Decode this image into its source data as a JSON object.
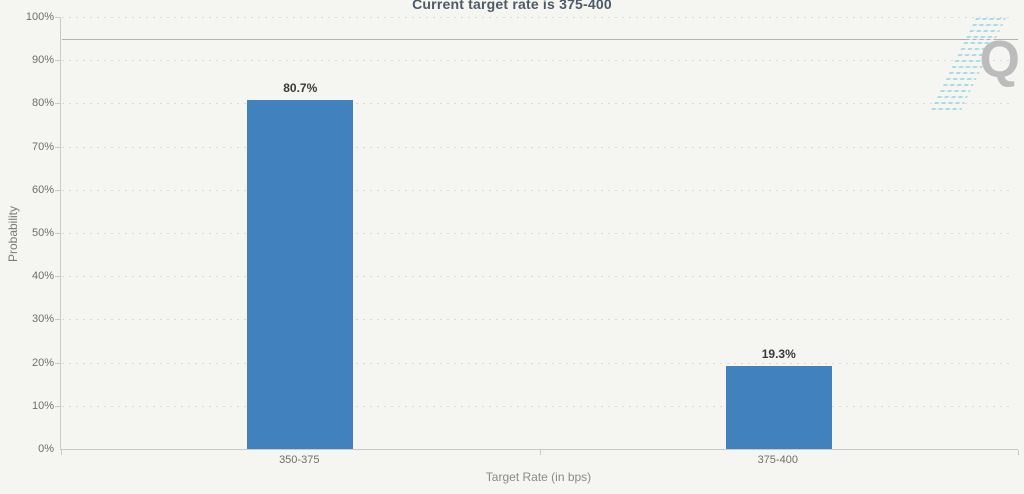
{
  "chart_data": {
    "type": "bar",
    "title": "Current target rate is 375-400",
    "xlabel": "Target Rate (in bps)",
    "ylabel": "Probability",
    "categories": [
      "350-375",
      "375-400"
    ],
    "series": [
      {
        "name": "Probability",
        "values": [
          80.7,
          19.3
        ]
      }
    ],
    "value_labels": [
      "80.7%",
      "19.3%"
    ],
    "y_ticks": [
      "0%",
      "10%",
      "20%",
      "30%",
      "40%",
      "50%",
      "60%",
      "70%",
      "80%",
      "90%",
      "100%"
    ],
    "ylim": [
      0,
      100
    ],
    "grid": "dotted-horizontal",
    "reference_line_y": 95,
    "legend": "none"
  },
  "watermark": {
    "letter": "Q"
  },
  "colors": {
    "background": "#f5f5f2",
    "bar": "#4181bd",
    "grid": "#d9d9d6",
    "axis": "#c9c9c6",
    "reference_line": "#b3b3b0",
    "title_text": "#4d5a68",
    "tick_text": "#6e6e6e",
    "axis_title_text": "#8a8a8a",
    "data_label_text": "#3a3a3a",
    "watermark_letter": "#bcbcbc",
    "watermark_accent": "#9fd8e3"
  }
}
